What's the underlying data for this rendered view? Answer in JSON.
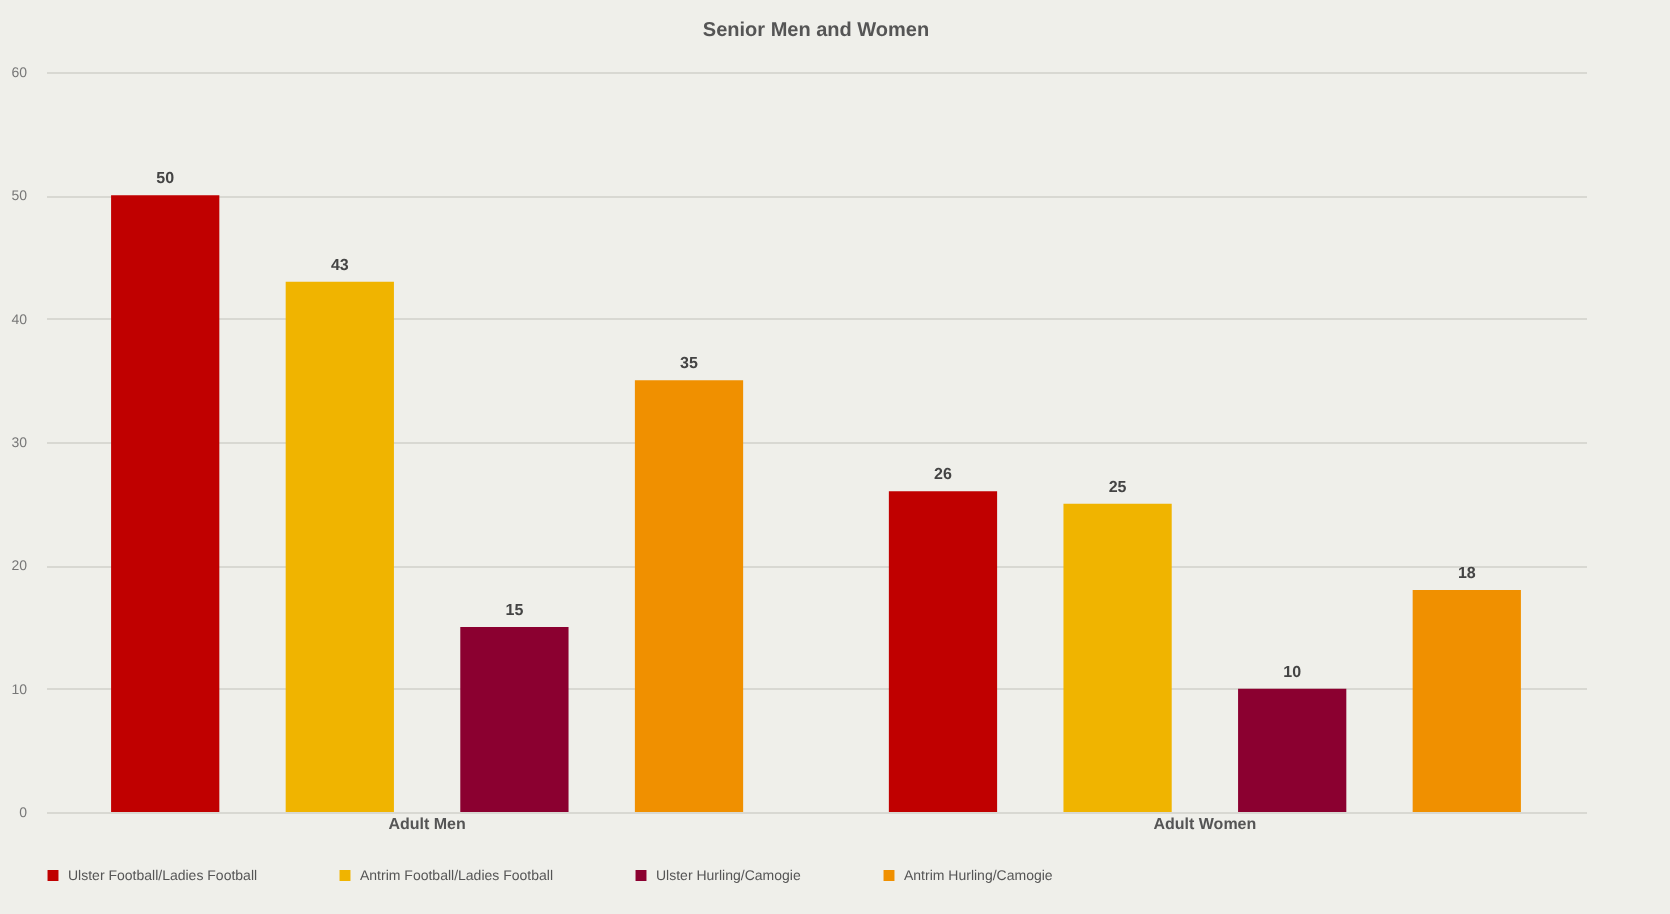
{
  "chart_data": {
    "type": "bar",
    "title": "Senior Men and Women",
    "categories": [
      "Adult Men",
      "Adult Women"
    ],
    "series": [
      {
        "name": "Ulster Football/Ladies Football",
        "color": "#c00000",
        "values": [
          50,
          26
        ]
      },
      {
        "name": "Antrim Football/Ladies Football",
        "color": "#f0b400",
        "values": [
          43,
          25
        ]
      },
      {
        "name": "Ulster Hurling/Camogie",
        "color": "#8b0030",
        "values": [
          15,
          10
        ]
      },
      {
        "name": "Antrim Hurling/Camogie",
        "color": "#f09000",
        "values": [
          35,
          18
        ]
      }
    ],
    "ylim": [
      0,
      60
    ],
    "yticks": [
      0,
      10,
      20,
      30,
      40,
      50,
      60
    ],
    "grid": "y",
    "legend": "bottom",
    "data_labels": true
  }
}
